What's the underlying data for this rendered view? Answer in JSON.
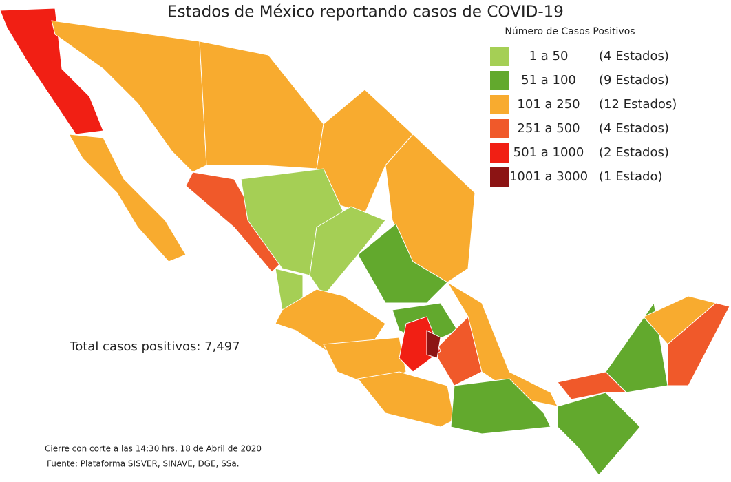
{
  "title": "Estados de México reportando casos de COVID-19",
  "legend": {
    "title": "Número de Casos Positivos",
    "items": [
      {
        "range": "1 a 50",
        "count": "(4 Estados)",
        "color": "#a5cf55"
      },
      {
        "range": "51 a 100",
        "count": "(9 Estados)",
        "color": "#62a92d"
      },
      {
        "range": "101 a 250",
        "count": "(12 Estados)",
        "color": "#f8ab2f"
      },
      {
        "range": "251 a 500",
        "count": "(4 Estados)",
        "color": "#f0592a"
      },
      {
        "range": "501 a 1000",
        "count": "(2 Estados)",
        "color": "#f11f14"
      },
      {
        "range": "1001 a 3000",
        "count": "(1 Estado)",
        "color": "#8c1414"
      }
    ]
  },
  "total": "Total casos positivos: 7,497",
  "notes": [
    "Cierre con corte a las 14:30 hrs, 18 de Abril de 2020",
    "Fuente: Plataforma SISVER, SINAVE, DGE, SSa."
  ]
}
